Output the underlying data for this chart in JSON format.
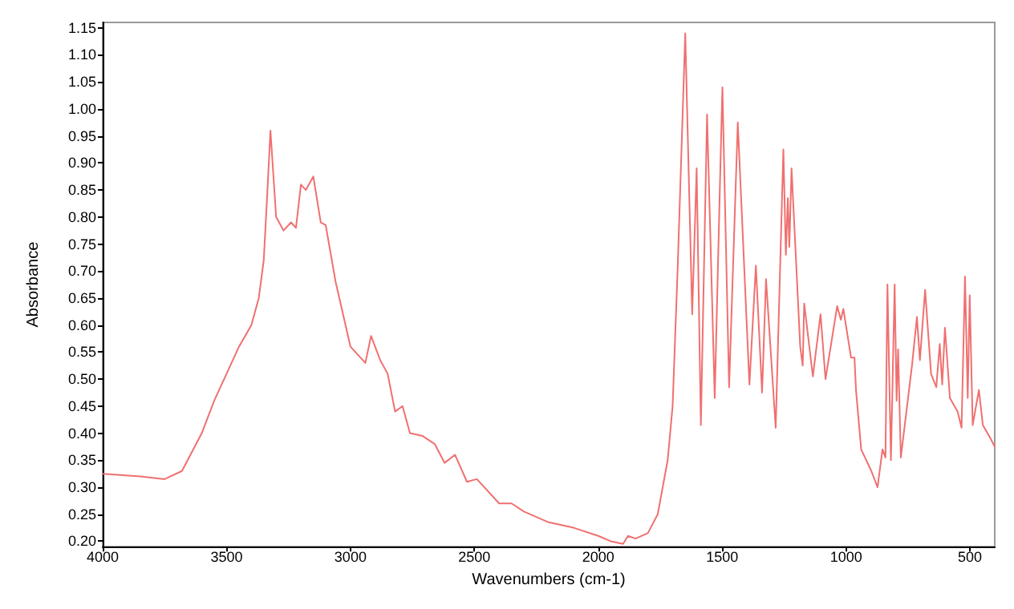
{
  "chart_data": {
    "type": "line",
    "xlabel": "Wavenumbers (cm-1)",
    "ylabel": "Absorbance",
    "xlim": [
      4000,
      400
    ],
    "ylim": [
      0.19,
      1.16
    ],
    "xticks": [
      4000,
      3500,
      3000,
      2500,
      2000,
      1500,
      1000,
      500
    ],
    "yticks": [
      {
        "value": 0.2,
        "label": "0.20"
      },
      0.25,
      {
        "value": 0.3,
        "label": "0.30"
      },
      0.35,
      {
        "value": 0.4,
        "label": "0.40"
      },
      0.45,
      {
        "value": 0.5,
        "label": "0.50"
      },
      0.55,
      {
        "value": 0.6,
        "label": "0.60"
      },
      0.65,
      {
        "value": 0.7,
        "label": "0.70"
      },
      0.75,
      {
        "value": 0.8,
        "label": "0.80"
      },
      0.85,
      {
        "value": 0.9,
        "label": "0.90"
      },
      0.95,
      {
        "value": 1.0,
        "label": "1.00"
      },
      1.05,
      {
        "value": 1.1,
        "label": "1.10"
      },
      1.15
    ],
    "grid": false,
    "marker": "none",
    "line_style": "solid",
    "series": [
      {
        "color": "#f07070",
        "x": [
          4000,
          3850,
          3750,
          3680,
          3600,
          3550,
          3500,
          3450,
          3400,
          3370,
          3350,
          3335,
          3323,
          3300,
          3270,
          3240,
          3220,
          3200,
          3180,
          3150,
          3120,
          3100,
          3060,
          3030,
          3000,
          2960,
          2940,
          2917,
          2880,
          2850,
          2820,
          2790,
          2760,
          2710,
          2660,
          2620,
          2578,
          2530,
          2490,
          2400,
          2350,
          2300,
          2200,
          2100,
          2000,
          1950,
          1900,
          1880,
          1850,
          1800,
          1760,
          1720,
          1700,
          1680,
          1649,
          1621,
          1603,
          1586,
          1561,
          1530,
          1509,
          1499,
          1472,
          1437,
          1390,
          1364,
          1339,
          1323,
          1284,
          1253,
          1243,
          1235,
          1229,
          1220,
          1185,
          1175,
          1169,
          1134,
          1103,
          1083,
          1036,
          1021,
          1011,
          980,
          966,
          960,
          939,
          898,
          873,
          853,
          841,
          833,
          819,
          804,
          796,
          790,
          779,
          734,
          714,
          702,
          681,
          657,
          636,
          622,
          612,
          601,
          581,
          550,
          534,
          520,
          509,
          501,
          489,
          464,
          448,
          417,
          400
        ],
        "values": [
          0.325,
          0.32,
          0.315,
          0.33,
          0.4,
          0.46,
          0.51,
          0.56,
          0.6,
          0.65,
          0.72,
          0.85,
          0.96,
          0.8,
          0.775,
          0.79,
          0.78,
          0.86,
          0.85,
          0.875,
          0.79,
          0.785,
          0.68,
          0.62,
          0.56,
          0.54,
          0.53,
          0.58,
          0.535,
          0.51,
          0.44,
          0.45,
          0.4,
          0.395,
          0.38,
          0.345,
          0.36,
          0.31,
          0.315,
          0.27,
          0.27,
          0.255,
          0.235,
          0.225,
          0.21,
          0.2,
          0.195,
          0.21,
          0.205,
          0.215,
          0.25,
          0.35,
          0.45,
          0.7,
          1.14,
          0.62,
          0.89,
          0.415,
          0.99,
          0.465,
          0.86,
          1.04,
          0.485,
          0.975,
          0.49,
          0.71,
          0.475,
          0.685,
          0.41,
          0.925,
          0.73,
          0.835,
          0.745,
          0.89,
          0.56,
          0.525,
          0.64,
          0.505,
          0.62,
          0.5,
          0.635,
          0.61,
          0.63,
          0.54,
          0.54,
          0.48,
          0.37,
          0.33,
          0.3,
          0.37,
          0.355,
          0.675,
          0.35,
          0.675,
          0.46,
          0.555,
          0.355,
          0.525,
          0.615,
          0.535,
          0.665,
          0.51,
          0.485,
          0.565,
          0.49,
          0.595,
          0.465,
          0.44,
          0.41,
          0.69,
          0.465,
          0.655,
          0.415,
          0.48,
          0.415,
          0.39,
          0.375
        ]
      }
    ]
  }
}
